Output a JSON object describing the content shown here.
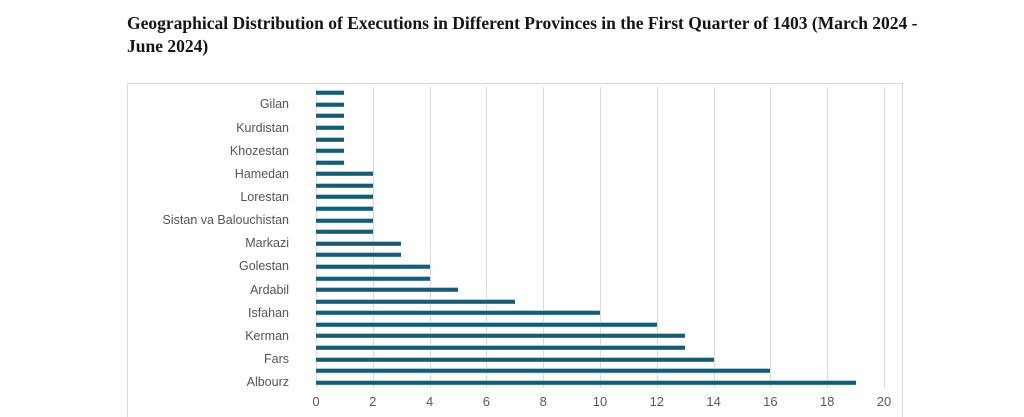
{
  "title": {
    "line1": "Geographical Distribution of Executions in Different Provinces in the First Quarter of 1403 (March 2024 -",
    "line2": "June 2024)"
  },
  "chart_data": {
    "type": "bar",
    "orientation": "horizontal",
    "title": "Geographical Distribution of Executions in Different Provinces in the First Quarter of 1403 (March 2024 - June 2024)",
    "xlabel": "",
    "ylabel": "",
    "x_axis": {
      "min": 0,
      "max": 20,
      "tick_step": 2,
      "ticks": [
        0,
        2,
        4,
        6,
        8,
        10,
        12,
        14,
        16,
        18,
        20
      ]
    },
    "grid": "vertical gridlines at every x tick",
    "legend_position": "none",
    "label_note": "y-axis category labels are rendered only on every other bar (2nd, 4th, ... 26th)",
    "bars_top_to_bottom": [
      {
        "label": "",
        "value": 1
      },
      {
        "label": "Gilan",
        "value": 1
      },
      {
        "label": "",
        "value": 1
      },
      {
        "label": "Kurdistan",
        "value": 1
      },
      {
        "label": "",
        "value": 1
      },
      {
        "label": "Khozestan",
        "value": 1
      },
      {
        "label": "",
        "value": 1
      },
      {
        "label": "Hamedan",
        "value": 2
      },
      {
        "label": "",
        "value": 2
      },
      {
        "label": "Lorestan",
        "value": 2
      },
      {
        "label": "",
        "value": 2
      },
      {
        "label": "Sistan va Balouchistan",
        "value": 2
      },
      {
        "label": "",
        "value": 2
      },
      {
        "label": "Markazi",
        "value": 3
      },
      {
        "label": "",
        "value": 3
      },
      {
        "label": "Golestan",
        "value": 4
      },
      {
        "label": "",
        "value": 4
      },
      {
        "label": "Ardabil",
        "value": 5
      },
      {
        "label": "",
        "value": 7
      },
      {
        "label": "Isfahan",
        "value": 10
      },
      {
        "label": "",
        "value": 12
      },
      {
        "label": "Kerman",
        "value": 13
      },
      {
        "label": "",
        "value": 13
      },
      {
        "label": "Fars",
        "value": 14
      },
      {
        "label": "",
        "value": 16
      },
      {
        "label": "Albourz",
        "value": 19
      }
    ],
    "visible_category_labels": [
      "Gilan",
      "Kurdistan",
      "Khozestan",
      "Hamedan",
      "Lorestan",
      "Sistan va Balouchistan",
      "Markazi",
      "Golestan",
      "Ardabil",
      "Isfahan",
      "Kerman",
      "Fars",
      "Albourz"
    ],
    "colors": {
      "bar": "#1b5a73",
      "bar_top_edge": "#a8cddc",
      "bar_bottom_edge": "#3d7e97",
      "gridline": "#d9d9d9",
      "frame_border": "#d9d9d9",
      "category_label": "#545454",
      "tick_label": "#595959",
      "title": "#141414",
      "background": "#ffffff"
    }
  }
}
